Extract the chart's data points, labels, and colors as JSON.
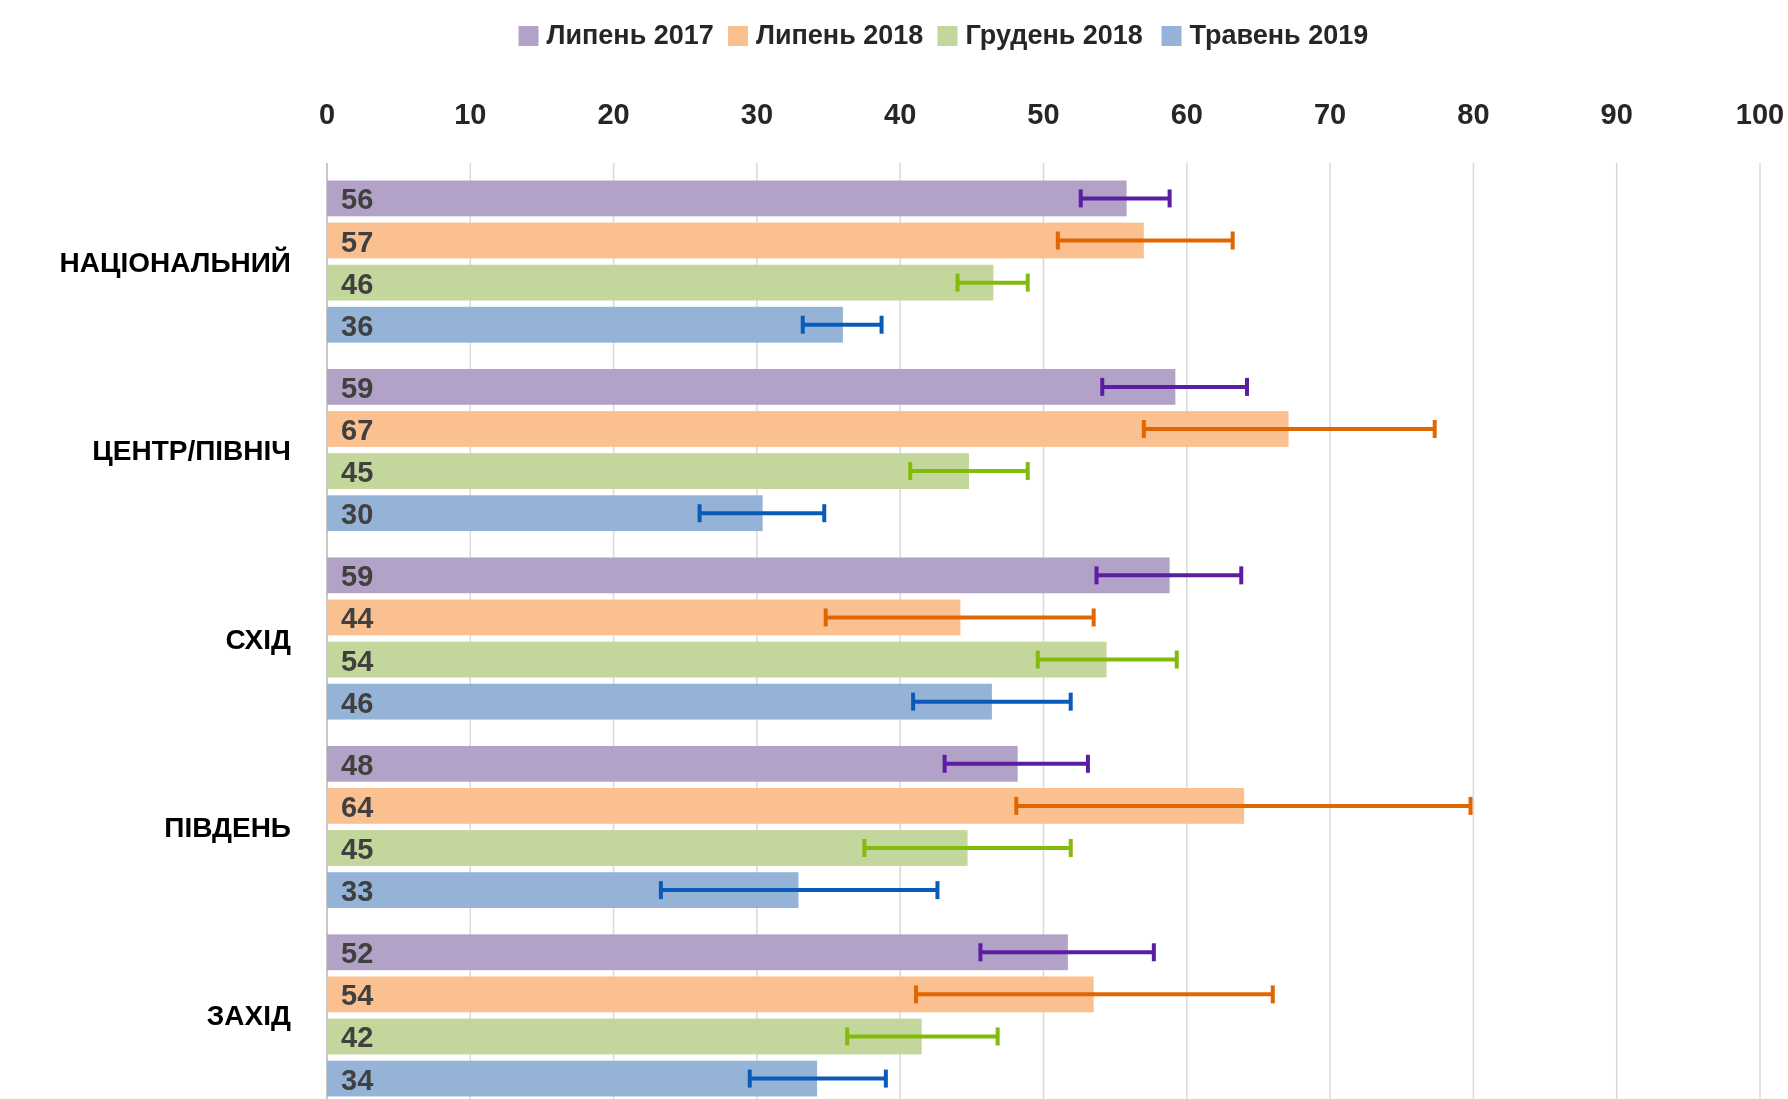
{
  "chart_data": {
    "type": "bar",
    "orientation": "horizontal",
    "legend": "top",
    "grid": "x",
    "categories": [
      "НАЦІОНАЛЬНИЙ",
      "ЦЕНТР/ПІВНІЧ",
      "СХІД",
      "ПІВДЕНЬ",
      "ЗАХІД"
    ],
    "xlim": [
      0,
      100
    ],
    "xticks": [
      0,
      10,
      20,
      30,
      40,
      50,
      60,
      70,
      80,
      90,
      100
    ],
    "series": [
      {
        "name": "Липень 2017",
        "color": "#b3a2c7",
        "values": [
          55.8,
          59.2,
          58.8,
          48.2,
          51.7
        ],
        "value_labels": [
          "56",
          "59",
          "59",
          "48",
          "52"
        ],
        "errors": [
          [
            52.6,
            58.8
          ],
          [
            54.1,
            64.2
          ],
          [
            53.7,
            63.8
          ],
          [
            43.1,
            53.1
          ],
          [
            45.6,
            57.7
          ]
        ]
      },
      {
        "name": "Липень 2018",
        "color": "#fac090",
        "values": [
          57.0,
          67.1,
          44.2,
          64.0,
          53.5
        ],
        "value_labels": [
          "57",
          "67",
          "44",
          "64",
          "54"
        ],
        "errors": [
          [
            51.0,
            63.2
          ],
          [
            57.0,
            77.3
          ],
          [
            34.8,
            53.5
          ],
          [
            48.1,
            79.8
          ],
          [
            41.1,
            66.0
          ]
        ]
      },
      {
        "name": "Грудень 2018",
        "color": "#c3d69b",
        "values": [
          46.5,
          44.8,
          54.4,
          44.7,
          41.5
        ],
        "value_labels": [
          "46",
          "45",
          "54",
          "45",
          "42"
        ],
        "errors": [
          [
            44.0,
            48.9
          ],
          [
            40.7,
            48.9
          ],
          [
            49.6,
            59.3
          ],
          [
            37.5,
            51.9
          ],
          [
            36.3,
            46.8
          ]
        ]
      },
      {
        "name": "Травень 2019",
        "color": "#95b3d7",
        "values": [
          36.0,
          30.4,
          46.4,
          32.9,
          34.2
        ],
        "value_labels": [
          "36",
          "30",
          "46",
          "33",
          "34"
        ],
        "errors": [
          [
            33.2,
            38.7
          ],
          [
            26.0,
            34.7
          ],
          [
            40.9,
            51.9
          ],
          [
            23.3,
            42.6
          ],
          [
            29.5,
            39.0
          ]
        ]
      }
    ]
  }
}
